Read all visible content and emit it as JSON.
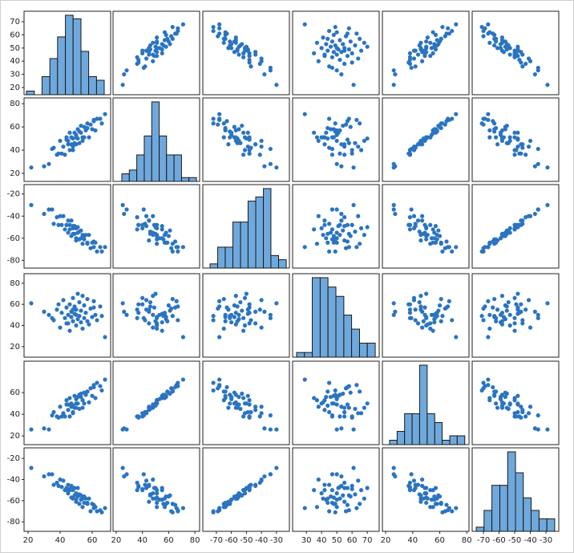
{
  "chart_data": {
    "type": "scatter_matrix",
    "color": "#2b74c0",
    "hist_color": "#6fa8dc",
    "variables": [
      {
        "values": [
          22,
          33,
          36,
          38,
          40,
          41,
          42,
          43,
          44,
          45,
          45,
          46,
          46,
          47,
          47,
          48,
          48,
          49,
          49,
          50,
          50,
          51,
          51,
          52,
          52,
          53,
          53,
          54,
          55,
          55,
          56,
          57,
          58,
          59,
          60,
          61,
          62,
          63,
          65,
          68,
          30,
          35,
          39,
          44,
          48,
          50,
          54,
          57,
          61,
          66
        ],
        "xlim": [
          17.5,
          71.5
        ],
        "xticks": [
          20,
          40,
          60
        ],
        "ylim": [
          14.5,
          78
        ],
        "yticks": [
          20,
          30,
          40,
          50,
          60,
          70
        ],
        "hist": {
          "bins": [
            19,
            23.9,
            28.7,
            33.6,
            38.4,
            43.3,
            48.1,
            53,
            57.8,
            62.7,
            67.5
          ],
          "counts": [
            1,
            0,
            5,
            10,
            16,
            22,
            21,
            12,
            5,
            4
          ]
        }
      },
      {
        "values": [
          25,
          28,
          42,
          36,
          48,
          37,
          43,
          36,
          49,
          45,
          48,
          40,
          55,
          45,
          51,
          40,
          50,
          55,
          46,
          51,
          45,
          58,
          50,
          56,
          46,
          55,
          61,
          51,
          60,
          51,
          57,
          63,
          51,
          62,
          58,
          66,
          57,
          67,
          67,
          71,
          26,
          41,
          37,
          51,
          43,
          53,
          48,
          59,
          65,
          63
        ],
        "xlim": [
          17.6,
          83.6
        ],
        "xticks": [
          20,
          40,
          60,
          80
        ],
        "ylim": [
          13,
          85
        ],
        "yticks": [
          20,
          40,
          60,
          80
        ],
        "hist": {
          "bins": [
            24.3,
            30,
            35.7,
            41.4,
            47.1,
            52.8,
            58.4,
            64.1,
            69.8,
            75.5,
            81.2
          ],
          "counts": [
            2,
            3,
            7,
            12,
            21,
            12,
            7,
            7,
            1,
            1
          ]
        }
      },
      {
        "values": [
          -30,
          -34,
          -47,
          -41,
          -40,
          -48,
          -40,
          -52,
          -48,
          -44,
          -55,
          -48,
          -52,
          -44,
          -58,
          -51,
          -56,
          -49,
          -56,
          -51,
          -62,
          -55,
          -50,
          -61,
          -54,
          -60,
          -53,
          -65,
          -58,
          -61,
          -57,
          -65,
          -57,
          -69,
          -64,
          -68,
          -64,
          -72,
          -68,
          -68,
          -38,
          -34,
          -48,
          -48,
          -49,
          -60,
          -57,
          -64,
          -63,
          -72
        ],
        "xlim": [
          -79,
          -21.4
        ],
        "xticks": [
          -70,
          -60,
          -50,
          -40,
          -30
        ],
        "ylim": [
          -87,
          -11.5
        ],
        "yticks": [
          -20,
          -40,
          -60,
          -80
        ],
        "hist": {
          "bins": [
            -74.2,
            -69.1,
            -64.1,
            -59,
            -53.9,
            -48.9,
            -43.8,
            -38.7,
            -33.7,
            -28.6,
            -23.5
          ],
          "counts": [
            1,
            5,
            5,
            11,
            11,
            16,
            17,
            19,
            3,
            2
          ]
        }
      },
      {
        "values": [
          61,
          50,
          45,
          55,
          38,
          52,
          64,
          47,
          57,
          42,
          50,
          60,
          35,
          53,
          48,
          66,
          44,
          51,
          58,
          40,
          55,
          46,
          70,
          49,
          62,
          43,
          54,
          37,
          59,
          47,
          52,
          65,
          41,
          56,
          48,
          63,
          50,
          45,
          58,
          29,
          53,
          47,
          60,
          42,
          55,
          50,
          68,
          44,
          57,
          49
        ],
        "xlim": [
          21,
          77.8
        ],
        "xticks": [
          30,
          40,
          50,
          60,
          70
        ],
        "ylim": [
          10,
          89
        ],
        "yticks": [
          20,
          40,
          60,
          80
        ],
        "hist": {
          "bins": [
            23.6,
            28.8,
            33.9,
            39.1,
            44.2,
            49.4,
            54.6,
            59.7,
            64.9,
            70,
            75.2
          ],
          "counts": [
            1,
            1,
            17,
            17,
            15,
            13,
            9,
            6,
            3,
            3
          ]
        }
      },
      {
        "values": [
          26,
          26,
          42,
          38,
          47,
          38,
          41,
          38,
          49,
          44,
          49,
          38,
          55,
          47,
          50,
          41,
          48,
          57,
          46,
          50,
          46,
          56,
          50,
          58,
          45,
          56,
          59,
          53,
          60,
          50,
          58,
          61,
          51,
          64,
          57,
          67,
          55,
          69,
          66,
          72,
          27,
          39,
          37,
          53,
          42,
          54,
          46,
          61,
          65,
          62
        ],
        "xlim": [
          17.6,
          81.6
        ],
        "xticks": [
          20,
          40,
          60,
          80
        ],
        "ylim": [
          12,
          89
        ],
        "yticks": [
          20,
          40,
          60
        ],
        "hist": {
          "bins": [
            22.9,
            28.5,
            34,
            39.6,
            45.1,
            50.7,
            56.3,
            61.8,
            67.4,
            72.9,
            78.5
          ],
          "counts": [
            1,
            3,
            7,
            7,
            18,
            7,
            5,
            1,
            2,
            2
          ]
        }
      },
      {
        "values": [
          -29,
          -35,
          -45,
          -43,
          -40,
          -47,
          -41,
          -50,
          -48,
          -45,
          -53,
          -49,
          -50,
          -46,
          -57,
          -50,
          -58,
          -48,
          -55,
          -53,
          -61,
          -56,
          -48,
          -63,
          -54,
          -59,
          -55,
          -66,
          -56,
          -62,
          -58,
          -63,
          -58,
          -70,
          -63,
          -67,
          -66,
          -70,
          -69,
          -67,
          -37,
          -35,
          -46,
          -50,
          -48,
          -59,
          -58,
          -62,
          -64,
          -71
        ],
        "xlim": [
          -77.2,
          -21.8
        ],
        "xticks": [
          -70,
          -60,
          -50,
          -40,
          -30
        ],
        "ylim": [
          -89,
          -10
        ],
        "yticks": [
          -20,
          -40,
          -60,
          -80
        ],
        "hist": {
          "bins": [
            -74.6,
            -69.6,
            -64.6,
            -59.5,
            -54.5,
            -49.5,
            -44.5,
            -39.5,
            -34.4,
            -29.4,
            -24.4
          ],
          "counts": [
            1,
            5,
            11,
            11,
            19,
            14,
            8,
            5,
            3,
            3
          ]
        }
      }
    ]
  }
}
